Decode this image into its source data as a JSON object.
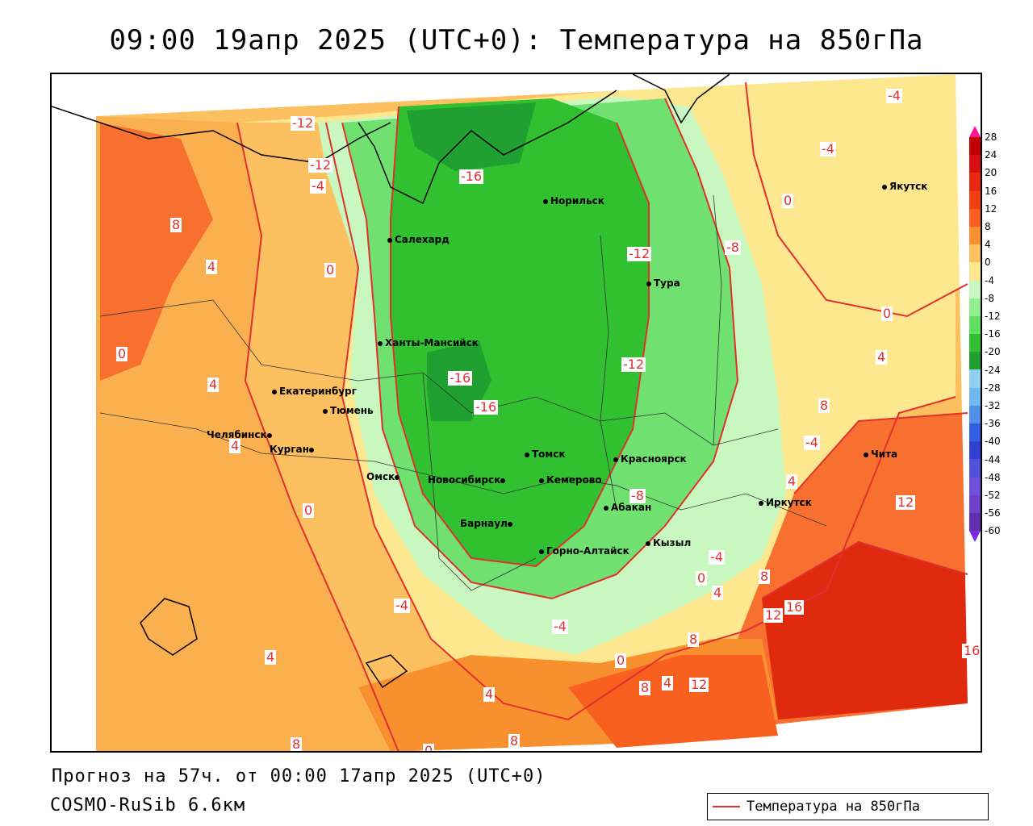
{
  "title": "09:00 19апр 2025 (UTC+0): Температура на 850гПа",
  "footer": {
    "forecast": "Прогноз на 57ч. от 00:00 17апр 2025 (UTC+0)",
    "model": "COSMO-RuSib 6.6км"
  },
  "legend": {
    "label": "Температура на 850гПа",
    "line_color": "#e03030"
  },
  "colorbar": {
    "ticks": [
      "28",
      "24",
      "20",
      "16",
      "12",
      "8",
      "4",
      "0",
      "-4",
      "-8",
      "-12",
      "-16",
      "-20",
      "-24",
      "-28",
      "-32",
      "-36",
      "-40",
      "-44",
      "-48",
      "-52",
      "-56",
      "-60"
    ],
    "colors": [
      "#c00000",
      "#d81010",
      "#e82810",
      "#f04010",
      "#f86020",
      "#f89030",
      "#fcc060",
      "#fde890",
      "#c8f8c0",
      "#90f090",
      "#60e060",
      "#30c030",
      "#20a030",
      "#90d0f0",
      "#70b8f0",
      "#5090e8",
      "#3060e0",
      "#3040d0",
      "#5050d8",
      "#7050d8",
      "#7040c8",
      "#6030b0"
    ]
  },
  "cities": [
    {
      "name": "Норильск"
    },
    {
      "name": "Салехард"
    },
    {
      "name": "Тура"
    },
    {
      "name": "Якутск"
    },
    {
      "name": "Ханты-Мансийск"
    },
    {
      "name": "Екатеринбург"
    },
    {
      "name": "Тюмень"
    },
    {
      "name": "Челябинск"
    },
    {
      "name": "Курган"
    },
    {
      "name": "Омск"
    },
    {
      "name": "Новосибирск"
    },
    {
      "name": "Томск"
    },
    {
      "name": "Кемерово"
    },
    {
      "name": "Красноярск"
    },
    {
      "name": "Барнаул"
    },
    {
      "name": "Абакан"
    },
    {
      "name": "Горно-Алтайск"
    },
    {
      "name": "Кызыл"
    },
    {
      "name": "Иркутск"
    },
    {
      "name": "Чита"
    }
  ],
  "isotherm_labels": [
    "-12",
    "-12",
    "-4",
    "-16",
    "8",
    "4",
    "0",
    "-12",
    "-8",
    "-4",
    "-4",
    "0",
    "0",
    "-16",
    "-16",
    "-12",
    "4",
    "4",
    "4",
    "0",
    "8",
    "-4",
    "-8",
    "4",
    "12",
    "-4",
    "-4",
    "0",
    "4",
    "8",
    "12",
    "16",
    "4",
    "8",
    "0",
    "4",
    "8",
    "12",
    "16",
    "-4",
    "0",
    "4",
    "8",
    "8",
    "0"
  ]
}
